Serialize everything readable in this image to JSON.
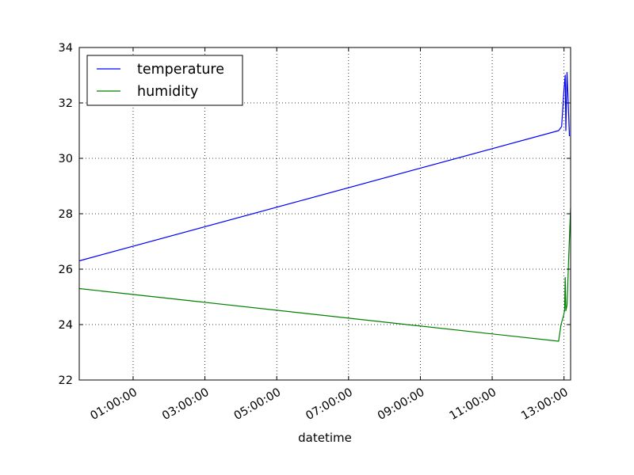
{
  "chart_data": {
    "type": "line",
    "title": "",
    "xlabel": "datetime",
    "ylabel": "",
    "x_unit": "time of day",
    "x_ticks": [
      "01:00:00",
      "03:00:00",
      "05:00:00",
      "07:00:00",
      "09:00:00",
      "11:00:00",
      "13:00:00"
    ],
    "xlim": [
      "23:30:00",
      "13:11:00"
    ],
    "ylim": [
      22,
      34
    ],
    "y_ticks": [
      22,
      24,
      26,
      28,
      30,
      32,
      34
    ],
    "grid": true,
    "legend_position": "top-left",
    "series": [
      {
        "name": "temperature",
        "color": "#0000ff",
        "points": [
          [
            "23:30:00",
            26.3
          ],
          [
            "12:51:00",
            31.0
          ],
          [
            "12:56:00",
            31.15
          ],
          [
            "13:00:00",
            32.5
          ],
          [
            "13:02:00",
            33.0
          ],
          [
            "13:03:00",
            31.0
          ],
          [
            "13:05:00",
            33.1
          ],
          [
            "13:07:00",
            32.0
          ],
          [
            "13:09:00",
            30.8
          ]
        ]
      },
      {
        "name": "humidity",
        "color": "#008000",
        "points": [
          [
            "23:30:00",
            25.3
          ],
          [
            "12:51:00",
            23.4
          ],
          [
            "12:55:00",
            24.0
          ],
          [
            "12:59:00",
            24.3
          ],
          [
            "13:01:00",
            24.5
          ],
          [
            "13:02:00",
            25.7
          ],
          [
            "13:03:00",
            24.5
          ],
          [
            "13:05:00",
            24.7
          ],
          [
            "13:08:00",
            26.5
          ],
          [
            "13:11:00",
            28.2
          ]
        ]
      }
    ]
  }
}
